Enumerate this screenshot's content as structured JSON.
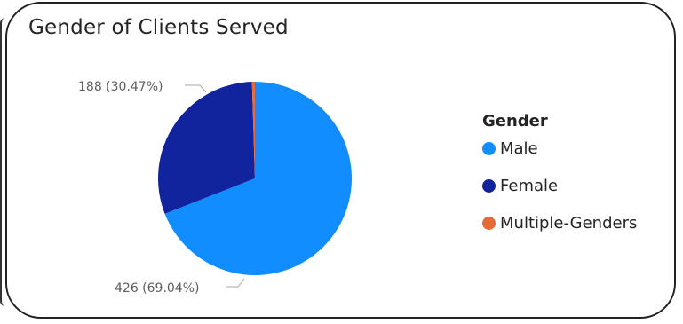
{
  "chart_data": {
    "type": "pie",
    "title": "Gender of Clients Served",
    "legend_title": "Gender",
    "legend_position": "right",
    "slices": [
      {
        "name": "Male",
        "value": 426,
        "percent": 69.04,
        "color": "#118dff",
        "label": "426 (69.04%)"
      },
      {
        "name": "Female",
        "value": 188,
        "percent": 30.47,
        "color": "#12239e",
        "label": "188 (30.47%)"
      },
      {
        "name": "Multiple-Genders",
        "value": 3,
        "percent": 0.49,
        "color": "#e66c37",
        "label": ""
      }
    ]
  }
}
